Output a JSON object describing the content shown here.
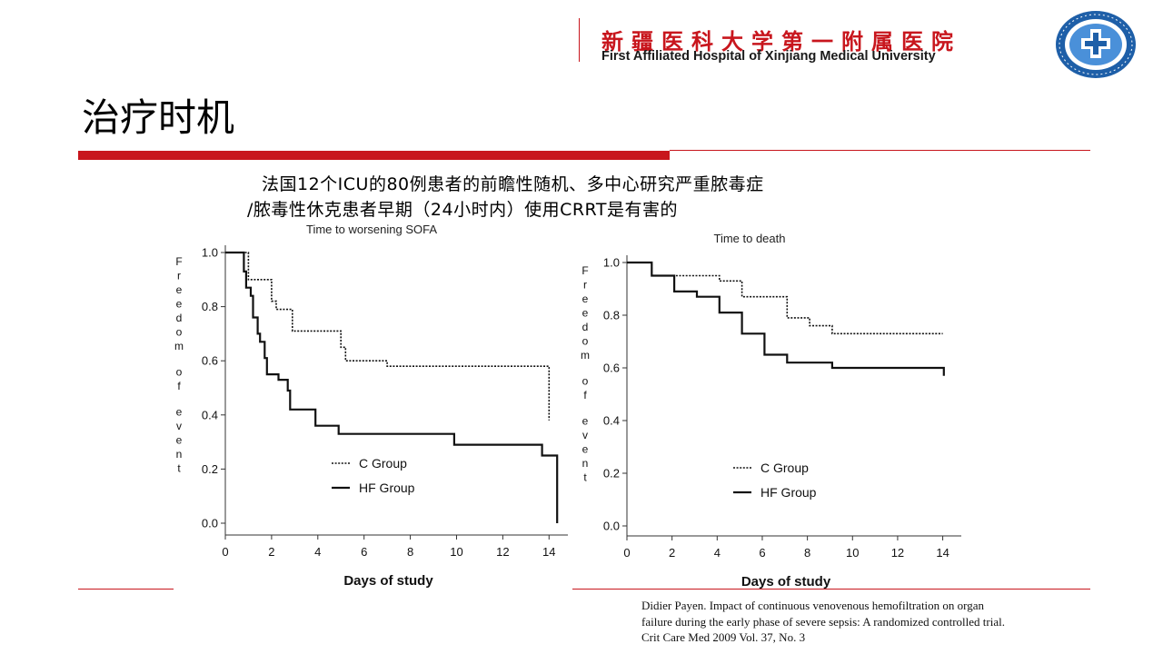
{
  "header": {
    "hospital_cn": "新疆医科大学第一附属医院",
    "hospital_en": "First Affiliated Hospital of Xinjiang Medical University",
    "accent_color": "#c8161d",
    "logo_color": "#1e5fa8"
  },
  "slide": {
    "title": "治疗时机",
    "desc_line1": "法国12个ICU的80例患者的前瞻性随机、多中心研究严重脓毒症",
    "desc_line2": "/脓毒性休克患者早期（24小时内）使用CRRT是有害的"
  },
  "chart_data": [
    {
      "type": "line",
      "step": true,
      "title": "Time to worsening SOFA",
      "xlabel": "Days of study",
      "ylabel": "Freedom of event",
      "xlim": [
        0,
        14.5
      ],
      "ylim": [
        0,
        1.0
      ],
      "xticks": [
        "0",
        "2",
        "4",
        "6",
        "8",
        "10",
        "12",
        "14"
      ],
      "yticks": [
        "0.0",
        "0.2",
        "0.4",
        "0.6",
        "0.8",
        "1.0"
      ],
      "legend_position": "center-left",
      "series": [
        {
          "name": "C Group",
          "style": "dotted",
          "points": [
            [
              0,
              1.0
            ],
            [
              0.8,
              1.0
            ],
            [
              1.0,
              0.9
            ],
            [
              1.8,
              0.9
            ],
            [
              2.0,
              0.82
            ],
            [
              2.2,
              0.79
            ],
            [
              2.7,
              0.79
            ],
            [
              2.9,
              0.71
            ],
            [
              4.8,
              0.71
            ],
            [
              5.0,
              0.65
            ],
            [
              5.2,
              0.6
            ],
            [
              6.8,
              0.6
            ],
            [
              7.0,
              0.58
            ],
            [
              13.9,
              0.58
            ],
            [
              14.0,
              0.38
            ]
          ]
        },
        {
          "name": "HF Group",
          "style": "solid",
          "points": [
            [
              0,
              1.0
            ],
            [
              0.7,
              1.0
            ],
            [
              0.8,
              0.93
            ],
            [
              0.9,
              0.87
            ],
            [
              1.1,
              0.84
            ],
            [
              1.2,
              0.76
            ],
            [
              1.4,
              0.7
            ],
            [
              1.5,
              0.67
            ],
            [
              1.7,
              0.61
            ],
            [
              1.8,
              0.55
            ],
            [
              2.2,
              0.55
            ],
            [
              2.3,
              0.53
            ],
            [
              2.6,
              0.53
            ],
            [
              2.7,
              0.49
            ],
            [
              2.8,
              0.42
            ],
            [
              3.8,
              0.42
            ],
            [
              3.9,
              0.36
            ],
            [
              4.8,
              0.36
            ],
            [
              4.9,
              0.33
            ],
            [
              9.8,
              0.33
            ],
            [
              9.9,
              0.29
            ],
            [
              13.6,
              0.29
            ],
            [
              13.7,
              0.25
            ],
            [
              14.3,
              0.25
            ],
            [
              14.35,
              0.0
            ]
          ]
        }
      ]
    },
    {
      "type": "line",
      "step": true,
      "title": "Time to death",
      "xlabel": "Days of study",
      "ylabel": "Freedom of event",
      "xlim": [
        0,
        14.5
      ],
      "ylim": [
        0,
        1.0
      ],
      "xticks": [
        "0",
        "2",
        "4",
        "6",
        "8",
        "10",
        "12",
        "14"
      ],
      "yticks": [
        "0.0",
        "0.2",
        "0.4",
        "0.6",
        "0.8",
        "1.0"
      ],
      "legend_position": "center-left",
      "series": [
        {
          "name": "C Group",
          "style": "dotted",
          "points": [
            [
              0,
              1.0
            ],
            [
              1.0,
              1.0
            ],
            [
              1.1,
              0.95
            ],
            [
              4.0,
              0.95
            ],
            [
              4.1,
              0.93
            ],
            [
              5.0,
              0.93
            ],
            [
              5.1,
              0.87
            ],
            [
              7.0,
              0.87
            ],
            [
              7.1,
              0.79
            ],
            [
              8.0,
              0.79
            ],
            [
              8.1,
              0.76
            ],
            [
              9.0,
              0.76
            ],
            [
              9.1,
              0.73
            ],
            [
              14.0,
              0.73
            ]
          ]
        },
        {
          "name": "HF Group",
          "style": "solid",
          "points": [
            [
              0,
              1.0
            ],
            [
              1.0,
              1.0
            ],
            [
              1.1,
              0.95
            ],
            [
              2.0,
              0.95
            ],
            [
              2.1,
              0.89
            ],
            [
              3.0,
              0.89
            ],
            [
              3.1,
              0.87
            ],
            [
              4.0,
              0.87
            ],
            [
              4.1,
              0.81
            ],
            [
              5.0,
              0.81
            ],
            [
              5.1,
              0.73
            ],
            [
              6.0,
              0.73
            ],
            [
              6.1,
              0.65
            ],
            [
              7.0,
              0.65
            ],
            [
              7.1,
              0.62
            ],
            [
              9.0,
              0.62
            ],
            [
              9.1,
              0.6
            ],
            [
              14.0,
              0.6
            ],
            [
              14.05,
              0.57
            ]
          ]
        }
      ]
    }
  ],
  "citation": {
    "line1": "Didier Payen. Impact of continuous venovenous hemofiltration on organ",
    "line2": "failure during the early phase of severe sepsis: A randomized controlled trial.",
    "line3": "Crit Care Med 2009 Vol. 37, No. 3"
  }
}
